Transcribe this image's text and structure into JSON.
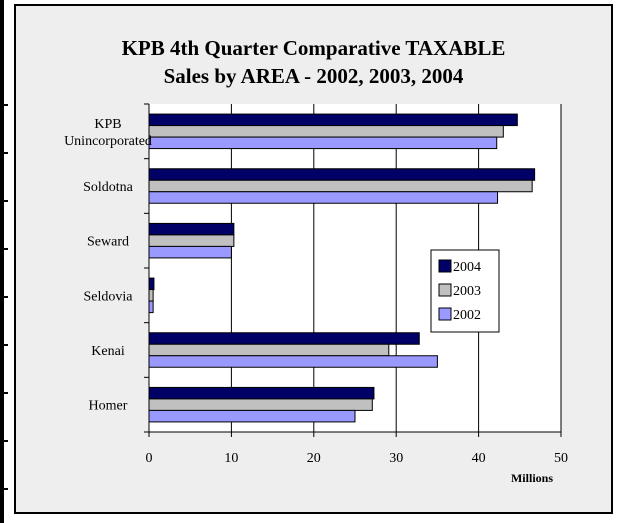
{
  "chart_data": {
    "type": "bar",
    "orientation": "horizontal",
    "title_line1": "KPB 4th Quarter Comparative TAXABLE",
    "title_line2": "Sales by AREA - 2002, 2003, 2004",
    "x_unit": "Millions",
    "xlim": [
      0,
      50
    ],
    "x_ticks": [
      "0",
      "10",
      "20",
      "30",
      "40",
      "50"
    ],
    "grid": "vertical",
    "legend_position": "right",
    "categories": [
      [
        "KPB",
        "Unincorporated"
      ],
      [
        "Soldotna"
      ],
      [
        "Seward"
      ],
      [
        "Seldovia"
      ],
      [
        "Kenai"
      ],
      [
        "Homer"
      ]
    ],
    "series": [
      {
        "name": "2004",
        "color": "#000066",
        "values": [
          44.7,
          46.8,
          10.3,
          0.6,
          32.8,
          27.3
        ]
      },
      {
        "name": "2003",
        "color": "#c0c0c0",
        "values": [
          43.0,
          46.5,
          10.3,
          0.5,
          29.1,
          27.1
        ]
      },
      {
        "name": "2002",
        "color": "#9999ff",
        "values": [
          42.2,
          42.3,
          10.0,
          0.5,
          35.0,
          25.0
        ]
      }
    ]
  }
}
